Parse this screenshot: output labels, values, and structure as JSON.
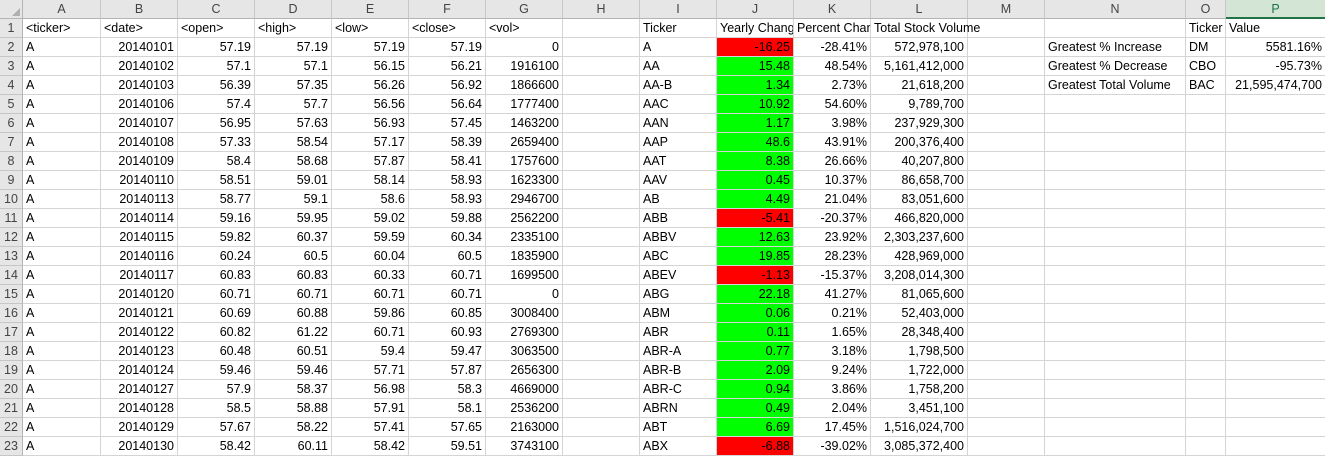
{
  "columns": [
    "A",
    "B",
    "C",
    "D",
    "E",
    "F",
    "G",
    "H",
    "I",
    "J",
    "K",
    "L",
    "M",
    "N",
    "O",
    "P"
  ],
  "selected_column": "P",
  "rows": [
    "1",
    "2",
    "3",
    "4",
    "5",
    "6",
    "7",
    "8",
    "9",
    "10",
    "11",
    "12",
    "13",
    "14",
    "15",
    "16",
    "17",
    "18",
    "19",
    "20",
    "21",
    "22",
    "23"
  ],
  "colors": {
    "positive": "#00ff00",
    "negative": "#ff0000",
    "header_bg": "#e6e6e6",
    "selected_header": "#217346"
  },
  "header_row": {
    "A": "<ticker>",
    "B": "<date>",
    "C": "<open>",
    "D": "<high>",
    "E": "<low>",
    "F": "<close>",
    "G": "<vol>",
    "I": "Ticker",
    "J": "Yearly Change",
    "K": "Percent Change",
    "L": "Total Stock Volume",
    "O": "Ticker",
    "P": "Value"
  },
  "raw": [
    [
      "A",
      "20140101",
      "57.19",
      "57.19",
      "57.19",
      "57.19",
      "0"
    ],
    [
      "A",
      "20140102",
      "57.1",
      "57.1",
      "56.15",
      "56.21",
      "1916100"
    ],
    [
      "A",
      "20140103",
      "56.39",
      "57.35",
      "56.26",
      "56.92",
      "1866600"
    ],
    [
      "A",
      "20140106",
      "57.4",
      "57.7",
      "56.56",
      "56.64",
      "1777400"
    ],
    [
      "A",
      "20140107",
      "56.95",
      "57.63",
      "56.93",
      "57.45",
      "1463200"
    ],
    [
      "A",
      "20140108",
      "57.33",
      "58.54",
      "57.17",
      "58.39",
      "2659400"
    ],
    [
      "A",
      "20140109",
      "58.4",
      "58.68",
      "57.87",
      "58.41",
      "1757600"
    ],
    [
      "A",
      "20140110",
      "58.51",
      "59.01",
      "58.14",
      "58.93",
      "1623300"
    ],
    [
      "A",
      "20140113",
      "58.77",
      "59.1",
      "58.6",
      "58.93",
      "2946700"
    ],
    [
      "A",
      "20140114",
      "59.16",
      "59.95",
      "59.02",
      "59.88",
      "2562200"
    ],
    [
      "A",
      "20140115",
      "59.82",
      "60.37",
      "59.59",
      "60.34",
      "2335100"
    ],
    [
      "A",
      "20140116",
      "60.24",
      "60.5",
      "60.04",
      "60.5",
      "1835900"
    ],
    [
      "A",
      "20140117",
      "60.83",
      "60.83",
      "60.33",
      "60.71",
      "1699500"
    ],
    [
      "A",
      "20140120",
      "60.71",
      "60.71",
      "60.71",
      "60.71",
      "0"
    ],
    [
      "A",
      "20140121",
      "60.69",
      "60.88",
      "59.86",
      "60.85",
      "3008400"
    ],
    [
      "A",
      "20140122",
      "60.82",
      "61.22",
      "60.71",
      "60.93",
      "2769300"
    ],
    [
      "A",
      "20140123",
      "60.48",
      "60.51",
      "59.4",
      "59.47",
      "3063500"
    ],
    [
      "A",
      "20140124",
      "59.46",
      "59.46",
      "57.71",
      "57.87",
      "2656300"
    ],
    [
      "A",
      "20140127",
      "57.9",
      "58.37",
      "56.98",
      "58.3",
      "4669000"
    ],
    [
      "A",
      "20140128",
      "58.5",
      "58.88",
      "57.91",
      "58.1",
      "2536200"
    ],
    [
      "A",
      "20140129",
      "57.67",
      "58.22",
      "57.41",
      "57.65",
      "2163000"
    ],
    [
      "A",
      "20140130",
      "58.42",
      "60.11",
      "58.42",
      "59.51",
      "3743100"
    ]
  ],
  "summary": [
    {
      "ticker": "A",
      "change": "-16.25",
      "pct": "-28.41%",
      "vol": "572,978,100",
      "sign": "neg"
    },
    {
      "ticker": "AA",
      "change": "15.48",
      "pct": "48.54%",
      "vol": "5,161,412,000",
      "sign": "pos"
    },
    {
      "ticker": "AA-B",
      "change": "1.34",
      "pct": "2.73%",
      "vol": "21,618,200",
      "sign": "pos"
    },
    {
      "ticker": "AAC",
      "change": "10.92",
      "pct": "54.60%",
      "vol": "9,789,700",
      "sign": "pos"
    },
    {
      "ticker": "AAN",
      "change": "1.17",
      "pct": "3.98%",
      "vol": "237,929,300",
      "sign": "pos"
    },
    {
      "ticker": "AAP",
      "change": "48.6",
      "pct": "43.91%",
      "vol": "200,376,400",
      "sign": "pos"
    },
    {
      "ticker": "AAT",
      "change": "8.38",
      "pct": "26.66%",
      "vol": "40,207,800",
      "sign": "pos"
    },
    {
      "ticker": "AAV",
      "change": "0.45",
      "pct": "10.37%",
      "vol": "86,658,700",
      "sign": "pos"
    },
    {
      "ticker": "AB",
      "change": "4.49",
      "pct": "21.04%",
      "vol": "83,051,600",
      "sign": "pos"
    },
    {
      "ticker": "ABB",
      "change": "-5.41",
      "pct": "-20.37%",
      "vol": "466,820,000",
      "sign": "neg"
    },
    {
      "ticker": "ABBV",
      "change": "12.63",
      "pct": "23.92%",
      "vol": "2,303,237,600",
      "sign": "pos"
    },
    {
      "ticker": "ABC",
      "change": "19.85",
      "pct": "28.23%",
      "vol": "428,969,000",
      "sign": "pos"
    },
    {
      "ticker": "ABEV",
      "change": "-1.13",
      "pct": "-15.37%",
      "vol": "3,208,014,300",
      "sign": "neg"
    },
    {
      "ticker": "ABG",
      "change": "22.18",
      "pct": "41.27%",
      "vol": "81,065,600",
      "sign": "pos"
    },
    {
      "ticker": "ABM",
      "change": "0.06",
      "pct": "0.21%",
      "vol": "52,403,000",
      "sign": "pos"
    },
    {
      "ticker": "ABR",
      "change": "0.11",
      "pct": "1.65%",
      "vol": "28,348,400",
      "sign": "pos"
    },
    {
      "ticker": "ABR-A",
      "change": "0.77",
      "pct": "3.18%",
      "vol": "1,798,500",
      "sign": "pos"
    },
    {
      "ticker": "ABR-B",
      "change": "2.09",
      "pct": "9.24%",
      "vol": "1,722,000",
      "sign": "pos"
    },
    {
      "ticker": "ABR-C",
      "change": "0.94",
      "pct": "3.86%",
      "vol": "1,758,200",
      "sign": "pos"
    },
    {
      "ticker": "ABRN",
      "change": "0.49",
      "pct": "2.04%",
      "vol": "3,451,100",
      "sign": "pos"
    },
    {
      "ticker": "ABT",
      "change": "6.69",
      "pct": "17.45%",
      "vol": "1,516,024,700",
      "sign": "pos"
    },
    {
      "ticker": "ABX",
      "change": "-6.88",
      "pct": "-39.02%",
      "vol": "3,085,372,400",
      "sign": "neg"
    }
  ],
  "greatest": [
    {
      "label": "Greatest % Increase",
      "ticker": "DM",
      "value": "5581.16%"
    },
    {
      "label": "Greatest % Decrease",
      "ticker": "CBO",
      "value": "-95.73%"
    },
    {
      "label": "Greatest Total Volume",
      "ticker": "BAC",
      "value": "21,595,474,700"
    }
  ]
}
